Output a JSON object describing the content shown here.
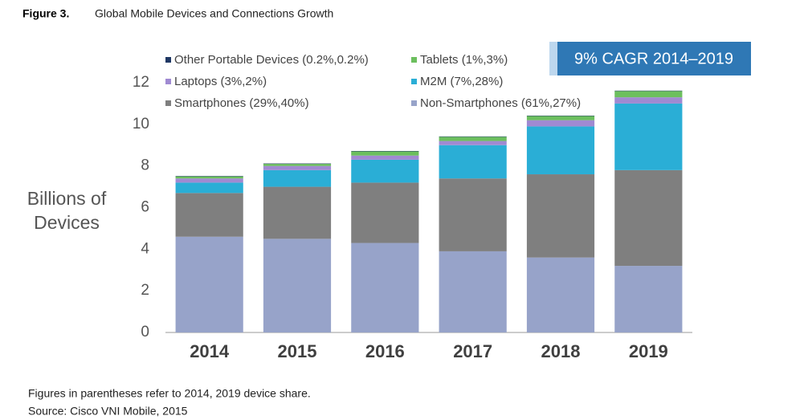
{
  "figure_label": "Figure 3.",
  "chart_data": {
    "type": "stacked_bar",
    "title": "Global Mobile Devices and Connections Growth",
    "ylabel": "Billions of Devices",
    "annotation": "9% CAGR 2014–2019",
    "categories": [
      "2014",
      "2015",
      "2016",
      "2017",
      "2018",
      "2019"
    ],
    "series": [
      {
        "name": "Non-Smartphones (61%,27%)",
        "color": "#97a3c9",
        "values": [
          4.6,
          4.5,
          4.3,
          3.9,
          3.6,
          3.2
        ]
      },
      {
        "name": "Smartphones (29%,40%)",
        "color": "#7f7f7f",
        "values": [
          2.1,
          2.5,
          2.9,
          3.5,
          4.0,
          4.6
        ]
      },
      {
        "name": "M2M (7%,28%)",
        "color": "#2aaed6",
        "values": [
          0.5,
          0.8,
          1.1,
          1.6,
          2.3,
          3.2
        ]
      },
      {
        "name": "Laptops (3%,2%)",
        "color": "#a08ad2",
        "values": [
          0.2,
          0.2,
          0.2,
          0.2,
          0.3,
          0.3
        ]
      },
      {
        "name": "Tablets (1%,3%)",
        "color": "#6cbf5e",
        "values": [
          0.1,
          0.1,
          0.2,
          0.2,
          0.2,
          0.3
        ]
      },
      {
        "name": "Other Portable Devices (0.2%,0.2%)",
        "color": "#1f3864",
        "values": [
          0.02,
          0.02,
          0.02,
          0.02,
          0.02,
          0.02
        ]
      }
    ],
    "ylim": [
      0,
      12
    ],
    "yticks": [
      0,
      2,
      4,
      6,
      8,
      10,
      12
    ],
    "grid": false
  },
  "notes": [
    "Figures in parentheses refer to 2014, 2019 device share.",
    "Source: Cisco VNI Mobile, 2015"
  ]
}
